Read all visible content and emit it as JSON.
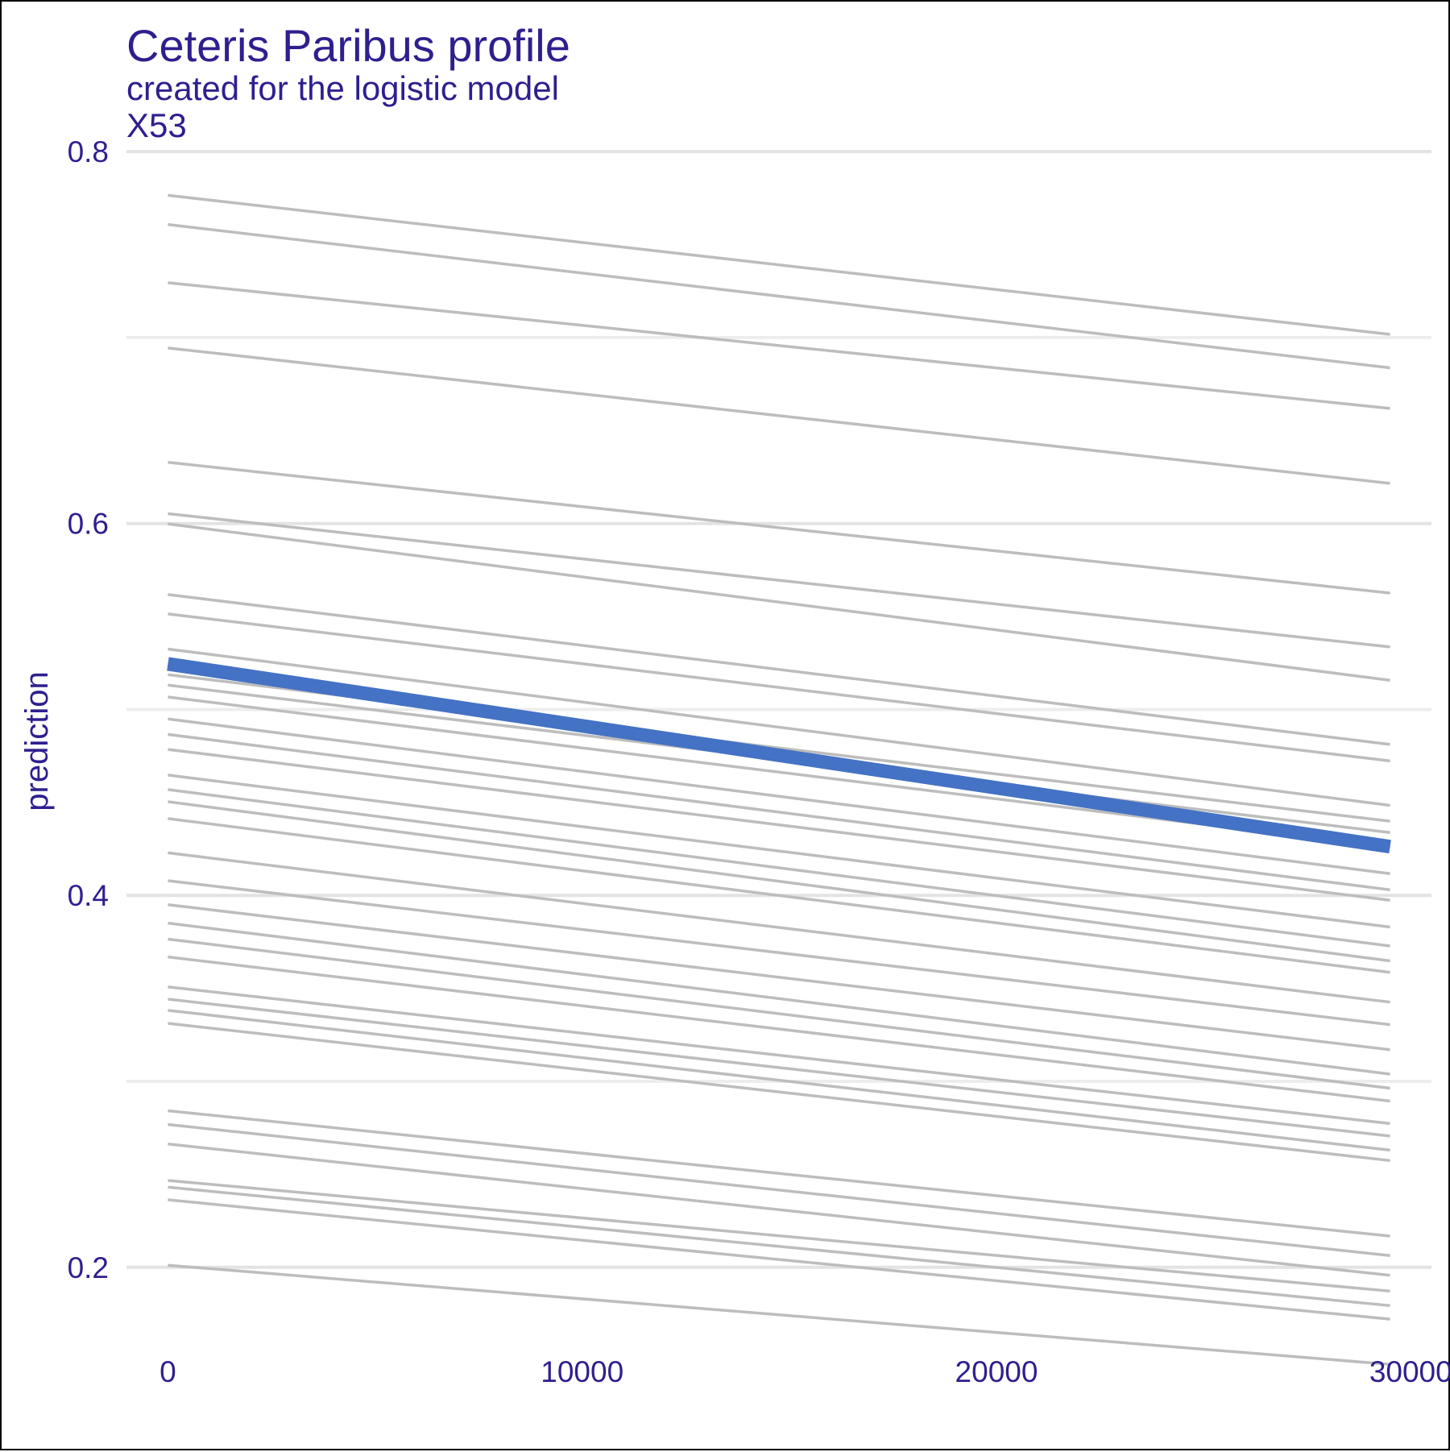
{
  "chart_data": {
    "type": "line",
    "title": "Ceteris Paribus profile",
    "subtitle": "created for the logistic model",
    "panel_label": "X53",
    "xlabel": "",
    "ylabel": "prediction",
    "xlim": [
      -1000,
      30500
    ],
    "ylim": [
      0.17,
      0.82
    ],
    "xticks": [
      0,
      10000,
      20000,
      30000
    ],
    "xtick_labels": [
      "0",
      "10000",
      "20000",
      "30000"
    ],
    "yticks": [
      0.2,
      0.4,
      0.6,
      0.8
    ],
    "ytick_labels": [
      "0.2",
      "0.4",
      "0.6",
      "0.8"
    ],
    "y_minor_gridlines": [
      0.3,
      0.5,
      0.7
    ],
    "grid": true,
    "legend": "none",
    "x": [
      0,
      29500
    ],
    "highlight": {
      "start": 0.5245,
      "end": 0.4262,
      "color": "#4472C4"
    },
    "profiles": [
      [
        0.7765,
        0.7017
      ],
      [
        0.7608,
        0.6837
      ],
      [
        0.7295,
        0.6619
      ],
      [
        0.6944,
        0.6216
      ],
      [
        0.6329,
        0.5626
      ],
      [
        0.6053,
        0.5336
      ],
      [
        0.5998,
        0.5157
      ],
      [
        0.5618,
        0.4812
      ],
      [
        0.5514,
        0.4723
      ],
      [
        0.5325,
        0.4484
      ],
      [
        0.5187,
        0.4399
      ],
      [
        0.5131,
        0.4338
      ],
      [
        0.5067,
        0.4259
      ],
      [
        0.4949,
        0.4117
      ],
      [
        0.4866,
        0.403
      ],
      [
        0.4785,
        0.3974
      ],
      [
        0.4647,
        0.383
      ],
      [
        0.4569,
        0.3728
      ],
      [
        0.4504,
        0.3648
      ],
      [
        0.4413,
        0.3586
      ],
      [
        0.4229,
        0.3426
      ],
      [
        0.4079,
        0.3305
      ],
      [
        0.395,
        0.317
      ],
      [
        0.3851,
        0.3039
      ],
      [
        0.3765,
        0.2963
      ],
      [
        0.3669,
        0.2894
      ],
      [
        0.3508,
        0.2773
      ],
      [
        0.3442,
        0.2706
      ],
      [
        0.3382,
        0.263
      ],
      [
        0.3312,
        0.2574
      ],
      [
        0.2842,
        0.2168
      ],
      [
        0.2768,
        0.2063
      ],
      [
        0.2663,
        0.1957
      ],
      [
        0.2467,
        0.1872
      ],
      [
        0.2431,
        0.1794
      ],
      [
        0.2363,
        0.1721
      ],
      [
        0.2011,
        0.1478
      ]
    ]
  },
  "colors": {
    "text": "#2E1F8F",
    "profile_line": "#BDBDBD",
    "grid_major": "#E3E3E3",
    "grid_minor": "#EDEDED",
    "highlight": "#4472C4"
  }
}
